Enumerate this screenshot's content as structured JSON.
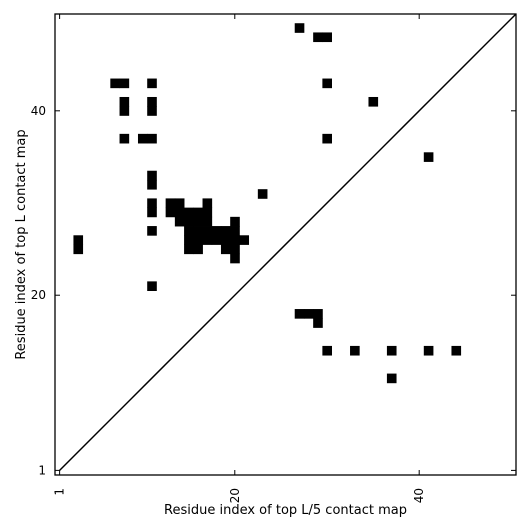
{
  "chart_data": {
    "type": "heatmap",
    "xlabel": "Residue index of top L/5 contact map",
    "ylabel": "Residue index of top L contact map",
    "xlim": [
      0.5,
      50.5
    ],
    "ylim": [
      0.5,
      50.5
    ],
    "x_ticks": [
      {
        "value": 1,
        "label": "1"
      },
      {
        "value": 20,
        "label": "20"
      },
      {
        "value": 40,
        "label": "40"
      }
    ],
    "y_ticks": [
      {
        "value": 1,
        "label": "1"
      },
      {
        "value": 20,
        "label": "20"
      },
      {
        "value": 40,
        "label": "40"
      }
    ],
    "x_tick_rotation": -90,
    "diagonal": true,
    "grid": false,
    "colors": {
      "contact": "#000000",
      "background": "#ffffff",
      "diagonal": "#000000"
    },
    "contacts_upper": [
      [
        3,
        25
      ],
      [
        3,
        26
      ],
      [
        7,
        43
      ],
      [
        8,
        43
      ],
      [
        8,
        41
      ],
      [
        8,
        40
      ],
      [
        8,
        37
      ],
      [
        10,
        37
      ],
      [
        11,
        43
      ],
      [
        11,
        41
      ],
      [
        11,
        40
      ],
      [
        11,
        37
      ],
      [
        11,
        33
      ],
      [
        11,
        32
      ],
      [
        11,
        30
      ],
      [
        11,
        29
      ],
      [
        11,
        27
      ],
      [
        11,
        21
      ],
      [
        13,
        29
      ],
      [
        13,
        30
      ],
      [
        14,
        28
      ],
      [
        14,
        29
      ],
      [
        14,
        30
      ],
      [
        15,
        25
      ],
      [
        15,
        26
      ],
      [
        15,
        27
      ],
      [
        15,
        28
      ],
      [
        15,
        29
      ],
      [
        16,
        25
      ],
      [
        16,
        26
      ],
      [
        16,
        27
      ],
      [
        16,
        28
      ],
      [
        16,
        29
      ],
      [
        17,
        26
      ],
      [
        17,
        27
      ],
      [
        17,
        28
      ],
      [
        17,
        29
      ],
      [
        17,
        30
      ],
      [
        18,
        26
      ],
      [
        18,
        27
      ],
      [
        19,
        25
      ],
      [
        19,
        26
      ],
      [
        19,
        27
      ],
      [
        20,
        24
      ],
      [
        20,
        25
      ],
      [
        20,
        26
      ],
      [
        20,
        27
      ],
      [
        20,
        28
      ],
      [
        21,
        26
      ],
      [
        23,
        31
      ],
      [
        27,
        49
      ],
      [
        29,
        48
      ],
      [
        30,
        48
      ],
      [
        30,
        43
      ],
      [
        30,
        37
      ],
      [
        35,
        41
      ],
      [
        41,
        35
      ]
    ],
    "contacts_lower": [
      [
        27,
        18
      ],
      [
        28,
        18
      ],
      [
        29,
        18
      ],
      [
        29,
        17
      ],
      [
        30,
        14
      ],
      [
        33,
        14
      ],
      [
        37,
        14
      ],
      [
        37,
        11
      ],
      [
        41,
        14
      ],
      [
        44,
        14
      ]
    ]
  }
}
